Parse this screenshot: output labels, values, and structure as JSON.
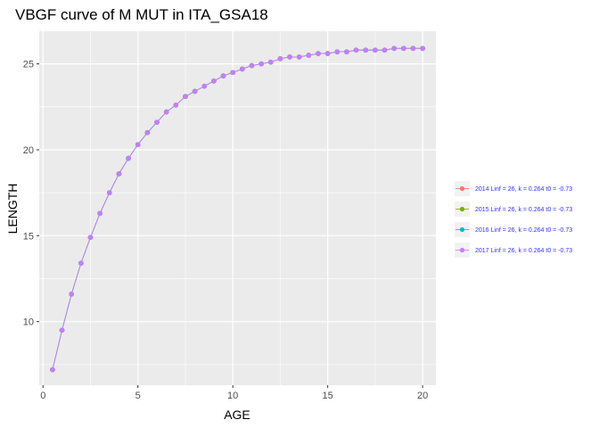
{
  "chart_data": {
    "type": "line",
    "title": "VBGF curve of M MUT in ITA_GSA18",
    "xlabel": "AGE",
    "ylabel": "LENGTH",
    "xlim": [
      -0.2,
      20.7
    ],
    "ylim": [
      6.3,
      26.9
    ],
    "xticks": [
      0,
      5,
      10,
      15,
      20
    ],
    "yticks": [
      10,
      15,
      20,
      25
    ],
    "grid": true,
    "legend_position": "right",
    "legend_text_color": "#3333ff",
    "series": [
      {
        "name": "2014 Linf = 26, k = 0.264 t0 = -0.73",
        "color": "#f8766d",
        "x": [
          0.5,
          1,
          1.5,
          2,
          2.5,
          3,
          3.5,
          4,
          4.5,
          5,
          5.5,
          6,
          6.5,
          7,
          7.5,
          8,
          8.5,
          9,
          9.5,
          10,
          10.5,
          11,
          11.5,
          12,
          12.5,
          13,
          13.5,
          14,
          14.5,
          15,
          15.5,
          16,
          16.5,
          17,
          17.5,
          18,
          18.5,
          19,
          19.5,
          20
        ],
        "y": [
          7.2,
          9.5,
          11.6,
          13.4,
          14.9,
          16.3,
          17.5,
          18.6,
          19.5,
          20.3,
          21.0,
          21.6,
          22.2,
          22.6,
          23.1,
          23.4,
          23.7,
          24.0,
          24.3,
          24.5,
          24.7,
          24.9,
          25.0,
          25.1,
          25.3,
          25.4,
          25.4,
          25.5,
          25.6,
          25.6,
          25.7,
          25.7,
          25.8,
          25.8,
          25.8,
          25.8,
          25.9,
          25.9,
          25.9,
          25.9
        ]
      },
      {
        "name": "2015 Linf = 26, k = 0.264 t0 = -0.73",
        "color": "#7cae00",
        "x": [
          0.5,
          1,
          1.5,
          2,
          2.5,
          3,
          3.5,
          4,
          4.5,
          5,
          5.5,
          6,
          6.5,
          7,
          7.5,
          8,
          8.5,
          9,
          9.5,
          10,
          10.5,
          11,
          11.5,
          12,
          12.5,
          13,
          13.5,
          14,
          14.5,
          15,
          15.5,
          16,
          16.5,
          17,
          17.5,
          18,
          18.5,
          19,
          19.5,
          20
        ],
        "y": [
          7.2,
          9.5,
          11.6,
          13.4,
          14.9,
          16.3,
          17.5,
          18.6,
          19.5,
          20.3,
          21.0,
          21.6,
          22.2,
          22.6,
          23.1,
          23.4,
          23.7,
          24.0,
          24.3,
          24.5,
          24.7,
          24.9,
          25.0,
          25.1,
          25.3,
          25.4,
          25.4,
          25.5,
          25.6,
          25.6,
          25.7,
          25.7,
          25.8,
          25.8,
          25.8,
          25.8,
          25.9,
          25.9,
          25.9,
          25.9
        ]
      },
      {
        "name": "2016 Linf = 26, k = 0.264 t0 = -0.73",
        "color": "#00bfc4",
        "x": [
          0.5,
          1,
          1.5,
          2,
          2.5,
          3,
          3.5,
          4,
          4.5,
          5,
          5.5,
          6,
          6.5,
          7,
          7.5,
          8,
          8.5,
          9,
          9.5,
          10,
          10.5,
          11,
          11.5,
          12,
          12.5,
          13,
          13.5,
          14,
          14.5,
          15,
          15.5,
          16,
          16.5,
          17,
          17.5,
          18,
          18.5,
          19,
          19.5,
          20
        ],
        "y": [
          7.2,
          9.5,
          11.6,
          13.4,
          14.9,
          16.3,
          17.5,
          18.6,
          19.5,
          20.3,
          21.0,
          21.6,
          22.2,
          22.6,
          23.1,
          23.4,
          23.7,
          24.0,
          24.3,
          24.5,
          24.7,
          24.9,
          25.0,
          25.1,
          25.3,
          25.4,
          25.4,
          25.5,
          25.6,
          25.6,
          25.7,
          25.7,
          25.8,
          25.8,
          25.8,
          25.8,
          25.9,
          25.9,
          25.9,
          25.9
        ]
      },
      {
        "name": "2017 Linf = 26, k = 0.264 t0 = -0.73",
        "color": "#c77cff",
        "x": [
          0.5,
          1,
          1.5,
          2,
          2.5,
          3,
          3.5,
          4,
          4.5,
          5,
          5.5,
          6,
          6.5,
          7,
          7.5,
          8,
          8.5,
          9,
          9.5,
          10,
          10.5,
          11,
          11.5,
          12,
          12.5,
          13,
          13.5,
          14,
          14.5,
          15,
          15.5,
          16,
          16.5,
          17,
          17.5,
          18,
          18.5,
          19,
          19.5,
          20
        ],
        "y": [
          7.2,
          9.5,
          11.6,
          13.4,
          14.9,
          16.3,
          17.5,
          18.6,
          19.5,
          20.3,
          21.0,
          21.6,
          22.2,
          22.6,
          23.1,
          23.4,
          23.7,
          24.0,
          24.3,
          24.5,
          24.7,
          24.9,
          25.0,
          25.1,
          25.3,
          25.4,
          25.4,
          25.5,
          25.6,
          25.6,
          25.7,
          25.7,
          25.8,
          25.8,
          25.8,
          25.8,
          25.9,
          25.9,
          25.9,
          25.9
        ]
      }
    ]
  }
}
